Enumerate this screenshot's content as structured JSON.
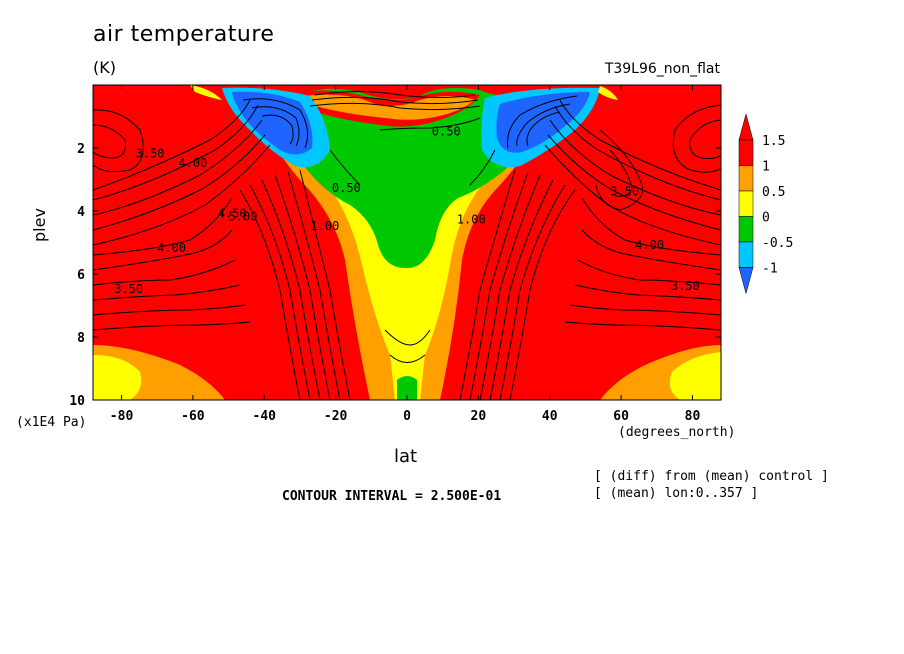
{
  "chart_data": {
    "type": "heatmap",
    "title": "air temperature",
    "units": "(K)",
    "experiment": "T39L96_non_flat",
    "xlabel": "lat",
    "xunit": "(degrees_north)",
    "ylabel": "plev",
    "yunit": "(x1E4 Pa)",
    "xlim": [
      -88,
      88
    ],
    "ylim": [
      0,
      10
    ],
    "y_inverted": true,
    "x_ticks": [
      "-80",
      "-60",
      "-40",
      "-20",
      "0",
      "20",
      "40",
      "60",
      "80"
    ],
    "y_ticks": [
      "2",
      "4",
      "6",
      "8",
      "10"
    ],
    "contour_interval_text": "CONTOUR INTERVAL = 2.500E-01",
    "notes": [
      "[ (diff) from (mean) control ]",
      "[ (mean) lon:0..357 ]"
    ],
    "colorbar": {
      "labels": [
        "1.5",
        "1",
        "0.5",
        "0",
        "-0.5",
        "-1"
      ],
      "levels": [
        -1,
        -0.5,
        0,
        0.5,
        1,
        1.5
      ],
      "colors": [
        "#1e64ff",
        "#00c8ff",
        "#00c800",
        "#ffff00",
        "#ffa000",
        "#ff0000",
        "#ff0000"
      ]
    },
    "contour_labels": [
      {
        "text": "3.50",
        "lat": -72,
        "plev": 2.3
      },
      {
        "text": "4.00",
        "lat": -60,
        "plev": 2.6
      },
      {
        "text": "4.50",
        "lat": -49,
        "plev": 4.2
      },
      {
        "text": "5.00",
        "lat": -46,
        "plev": 4.3
      },
      {
        "text": "4.00",
        "lat": -66,
        "plev": 5.3
      },
      {
        "text": "3.50",
        "lat": -78,
        "plev": 6.6
      },
      {
        "text": "1.00",
        "lat": -23,
        "plev": 4.6
      },
      {
        "text": "0.50",
        "lat": -17,
        "plev": 3.4
      },
      {
        "text": "0.50",
        "lat": 11,
        "plev": 1.6
      },
      {
        "text": "1.00",
        "lat": 18,
        "plev": 4.4
      },
      {
        "text": "3.50",
        "lat": 61,
        "plev": 3.5
      },
      {
        "text": "4.00",
        "lat": 68,
        "plev": 5.2
      },
      {
        "text": "3.50",
        "lat": 78,
        "plev": 6.5
      }
    ]
  }
}
